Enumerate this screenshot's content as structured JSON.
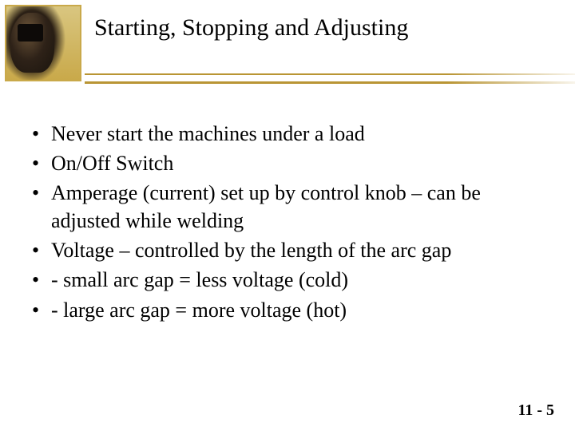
{
  "header": {
    "title": "Starting, Stopping and Adjusting",
    "divider_color": "#b99534",
    "logo_border_color": "#c9a94a"
  },
  "bullets": [
    "Never start the machines under a load",
    "On/Off Switch",
    "Amperage (current) set up by control knob – can be adjusted while welding",
    "Voltage – controlled by the length of the arc gap",
    "- small arc gap = less voltage (cold)",
    "- large arc gap = more voltage (hot)"
  ],
  "footer": {
    "page_number": "11 - 5"
  },
  "styling": {
    "title_fontsize": 30,
    "body_fontsize": 26,
    "pagenum_fontsize": 20,
    "background_color": "#ffffff",
    "text_color": "#000000",
    "font_family": "Times New Roman"
  }
}
